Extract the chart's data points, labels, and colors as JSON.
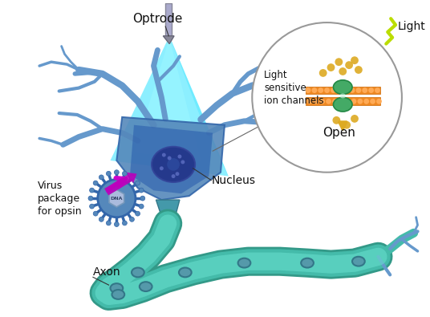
{
  "background_color": "#ffffff",
  "labels": {
    "optrode": "Optrode",
    "virus": "Virus\npackage\nfor opsin",
    "nucleus": "Nucleus",
    "axon": "Axon",
    "light": "Light",
    "light_sensitive": "Light\nsensitive\nion channels",
    "open": "Open"
  },
  "colors": {
    "dendrite": "#6699cc",
    "dendrite_dark": "#4477aa",
    "soma_blue": "#3366aa",
    "soma_cyan": "#33aacc",
    "soma_light": "#55bbdd",
    "nucleus_blue": "#334488",
    "nucleus_light": "#4455aa",
    "axon_green": "#44bbaa",
    "axon_light": "#66ddcc",
    "axon_dark": "#339988",
    "node_teal": "#3399aa",
    "cone_cyan": "#00ddff",
    "optrode_gray": "#888899",
    "optrode_light": "#aaaacc",
    "virus_blue": "#5588bb",
    "virus_rim": "#3366aa",
    "virus_inner": "#aabbdd",
    "arrow_purple": "#cc00cc",
    "ion_orange": "#ee8822",
    "ion_green": "#44aa66",
    "ion_dot": "#ddaa22",
    "circle_border": "#999999",
    "light_yellow": "#bbdd00",
    "text_color": "#111111",
    "white": "#ffffff"
  }
}
